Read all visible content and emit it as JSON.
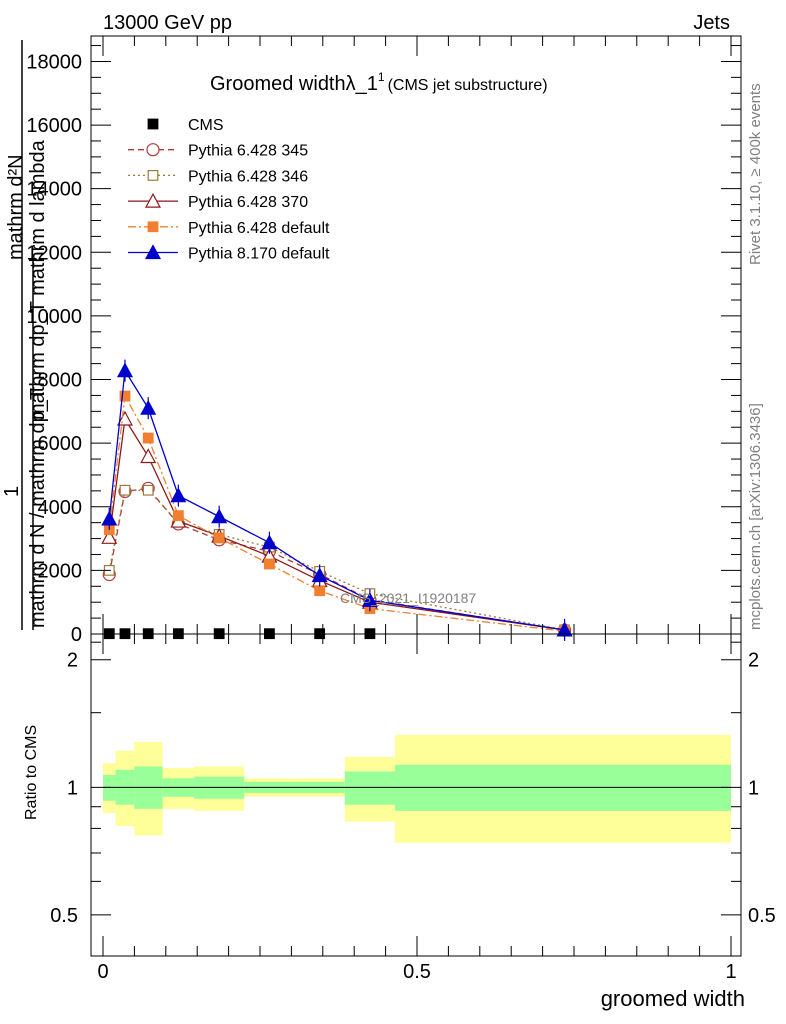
{
  "header": {
    "left": "13000 GeV pp",
    "right": "Jets"
  },
  "side_labels": {
    "rivet": "Rivet 3.1.10, ≥ 400k events",
    "mcplots": "mcplots.cern.ch [arXiv:1306.3436]"
  },
  "chart_data": [
    {
      "type": "line",
      "title": "Groomed widthλ_1",
      "title_sup": "1",
      "subtitle": "(CMS jet substructure)",
      "ylabel_numerator": "mathrm d²N",
      "ylabel_numerator_2": "mathrm dp_T mathrm d lambda",
      "ylabel_one": "1",
      "ylabel_denominator": "mathrm d N / mathrm dp_T",
      "annotation": "CMS_2021_I1920187",
      "xlim": [
        0,
        1
      ],
      "ylim": [
        0,
        18800
      ],
      "ytick_labels": [
        "0",
        "2000",
        "4000",
        "6000",
        "8000",
        "10000",
        "12000",
        "14000",
        "16000",
        "18000"
      ],
      "ytick_values": [
        0,
        2000,
        4000,
        6000,
        8000,
        10000,
        12000,
        14000,
        16000,
        18000
      ],
      "series": [
        {
          "name": "CMS",
          "color": "#000000",
          "marker": "filled-square",
          "line": "none",
          "points": [
            {
              "x": 0.01,
              "y": 10
            },
            {
              "x": 0.035,
              "y": 10
            },
            {
              "x": 0.072,
              "y": 10
            },
            {
              "x": 0.12,
              "y": 10
            },
            {
              "x": 0.185,
              "y": 10
            },
            {
              "x": 0.265,
              "y": 10
            },
            {
              "x": 0.345,
              "y": 10
            },
            {
              "x": 0.425,
              "y": 10
            }
          ]
        },
        {
          "name": "Pythia 6.428 345",
          "color": "#b03a3a",
          "marker": "open-circle",
          "line": "dashed",
          "points": [
            {
              "x": 0.01,
              "y": 1870
            },
            {
              "x": 0.035,
              "y": 4480
            },
            {
              "x": 0.072,
              "y": 4580
            },
            {
              "x": 0.12,
              "y": 3460
            },
            {
              "x": 0.185,
              "y": 2960
            },
            {
              "x": 0.265,
              "y": 2600
            },
            {
              "x": 0.345,
              "y": 1880
            },
            {
              "x": 0.425,
              "y": 1080
            },
            {
              "x": 0.735,
              "y": 120
            }
          ]
        },
        {
          "name": "Pythia 6.428 346",
          "color": "#9c7a3c",
          "marker": "open-square",
          "line": "dotted",
          "points": [
            {
              "x": 0.01,
              "y": 2000
            },
            {
              "x": 0.035,
              "y": 4520
            },
            {
              "x": 0.072,
              "y": 4520
            },
            {
              "x": 0.12,
              "y": 3520
            },
            {
              "x": 0.185,
              "y": 3130
            },
            {
              "x": 0.265,
              "y": 2730
            },
            {
              "x": 0.345,
              "y": 1970
            },
            {
              "x": 0.425,
              "y": 1270
            },
            {
              "x": 0.735,
              "y": 130
            }
          ]
        },
        {
          "name": "Pythia 6.428 370",
          "color": "#8b1a1a",
          "marker": "open-triangle",
          "line": "solid",
          "points": [
            {
              "x": 0.01,
              "y": 3040
            },
            {
              "x": 0.035,
              "y": 6760
            },
            {
              "x": 0.072,
              "y": 5580
            },
            {
              "x": 0.12,
              "y": 3550
            },
            {
              "x": 0.185,
              "y": 3080
            },
            {
              "x": 0.265,
              "y": 2450
            },
            {
              "x": 0.345,
              "y": 1680
            },
            {
              "x": 0.425,
              "y": 1000
            },
            {
              "x": 0.735,
              "y": 130
            }
          ]
        },
        {
          "name": "Pythia 6.428 default",
          "color": "#f08030",
          "marker": "filled-square",
          "line": "dashdot",
          "points": [
            {
              "x": 0.01,
              "y": 3280
            },
            {
              "x": 0.035,
              "y": 7480
            },
            {
              "x": 0.072,
              "y": 6160
            },
            {
              "x": 0.12,
              "y": 3720
            },
            {
              "x": 0.185,
              "y": 3020
            },
            {
              "x": 0.265,
              "y": 2200
            },
            {
              "x": 0.345,
              "y": 1360
            },
            {
              "x": 0.425,
              "y": 800
            },
            {
              "x": 0.735,
              "y": 90
            }
          ]
        },
        {
          "name": "Pythia 8.170 default",
          "color": "#0000cc",
          "marker": "filled-triangle",
          "line": "solid",
          "points": [
            {
              "x": 0.01,
              "y": 3620
            },
            {
              "x": 0.035,
              "y": 8280
            },
            {
              "x": 0.072,
              "y": 7100
            },
            {
              "x": 0.12,
              "y": 4350
            },
            {
              "x": 0.185,
              "y": 3690
            },
            {
              "x": 0.265,
              "y": 2870
            },
            {
              "x": 0.345,
              "y": 1840
            },
            {
              "x": 0.425,
              "y": 1060
            },
            {
              "x": 0.735,
              "y": 130
            }
          ]
        }
      ]
    },
    {
      "type": "area",
      "ylabel": "Ratio to CMS",
      "xlabel": "groomed width",
      "xlim": [
        0,
        1
      ],
      "ylim": [
        0.4,
        2.3
      ],
      "yscale": "log",
      "ytick_labels": [
        "0.5",
        "1",
        "2"
      ],
      "ytick_values": [
        0.5,
        1,
        2
      ],
      "xtick_labels": [
        "0",
        "0.5",
        "1"
      ],
      "xtick_values": [
        0,
        0.5,
        1
      ],
      "reference_line": 1,
      "band_colors": {
        "inner": "#99ff99",
        "outer": "#ffff99"
      },
      "bins": [
        {
          "x0": 0.0,
          "x1": 0.02,
          "inner": [
            0.93,
            1.07
          ],
          "outer": [
            0.87,
            1.14
          ]
        },
        {
          "x0": 0.02,
          "x1": 0.05,
          "inner": [
            0.91,
            1.1
          ],
          "outer": [
            0.81,
            1.22
          ]
        },
        {
          "x0": 0.05,
          "x1": 0.095,
          "inner": [
            0.89,
            1.12
          ],
          "outer": [
            0.77,
            1.28
          ]
        },
        {
          "x0": 0.095,
          "x1": 0.145,
          "inner": [
            0.95,
            1.05
          ],
          "outer": [
            0.89,
            1.11
          ]
        },
        {
          "x0": 0.145,
          "x1": 0.225,
          "inner": [
            0.94,
            1.06
          ],
          "outer": [
            0.88,
            1.12
          ]
        },
        {
          "x0": 0.225,
          "x1": 0.305,
          "inner": [
            0.97,
            1.03
          ],
          "outer": [
            0.95,
            1.05
          ]
        },
        {
          "x0": 0.305,
          "x1": 0.385,
          "inner": [
            0.97,
            1.03
          ],
          "outer": [
            0.95,
            1.05
          ]
        },
        {
          "x0": 0.385,
          "x1": 0.465,
          "inner": [
            0.91,
            1.09
          ],
          "outer": [
            0.83,
            1.18
          ]
        },
        {
          "x0": 0.465,
          "x1": 1.0,
          "inner": [
            0.88,
            1.13
          ],
          "outer": [
            0.74,
            1.33
          ]
        }
      ]
    }
  ]
}
